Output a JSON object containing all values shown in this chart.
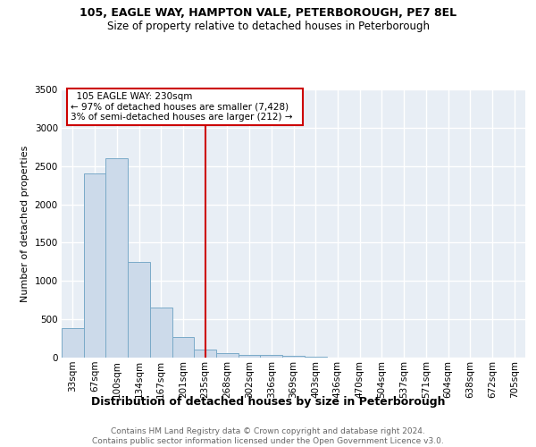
{
  "title": "105, EAGLE WAY, HAMPTON VALE, PETERBOROUGH, PE7 8EL",
  "subtitle": "Size of property relative to detached houses in Peterborough",
  "xlabel": "Distribution of detached houses by size in Peterborough",
  "ylabel": "Number of detached properties",
  "footnote": "Contains HM Land Registry data © Crown copyright and database right 2024.\nContains public sector information licensed under the Open Government Licence v3.0.",
  "bar_color": "#ccdaea",
  "bar_edge_color": "#7aaac8",
  "categories": [
    "33sqm",
    "67sqm",
    "100sqm",
    "134sqm",
    "167sqm",
    "201sqm",
    "235sqm",
    "268sqm",
    "302sqm",
    "336sqm",
    "369sqm",
    "403sqm",
    "436sqm",
    "470sqm",
    "504sqm",
    "537sqm",
    "571sqm",
    "604sqm",
    "638sqm",
    "672sqm",
    "705sqm"
  ],
  "values": [
    385,
    2400,
    2600,
    1250,
    650,
    270,
    100,
    55,
    40,
    30,
    25,
    15,
    0,
    0,
    0,
    0,
    0,
    0,
    0,
    0,
    0
  ],
  "vline_index": 6,
  "vline_label": "105 EAGLE WAY: 230sqm",
  "annotation_line1": "← 97% of detached houses are smaller (7,428)",
  "annotation_line2": "3% of semi-detached houses are larger (212) →",
  "ylim_max": 3500,
  "yticks": [
    0,
    500,
    1000,
    1500,
    2000,
    2500,
    3000,
    3500
  ],
  "vline_color": "#cc0000",
  "background_color": "#e8eef5",
  "title_fontsize": 9,
  "subtitle_fontsize": 8.5,
  "xlabel_fontsize": 9,
  "ylabel_fontsize": 8,
  "tick_fontsize": 7.5,
  "footnote_fontsize": 6.5,
  "footnote_color": "#666666"
}
